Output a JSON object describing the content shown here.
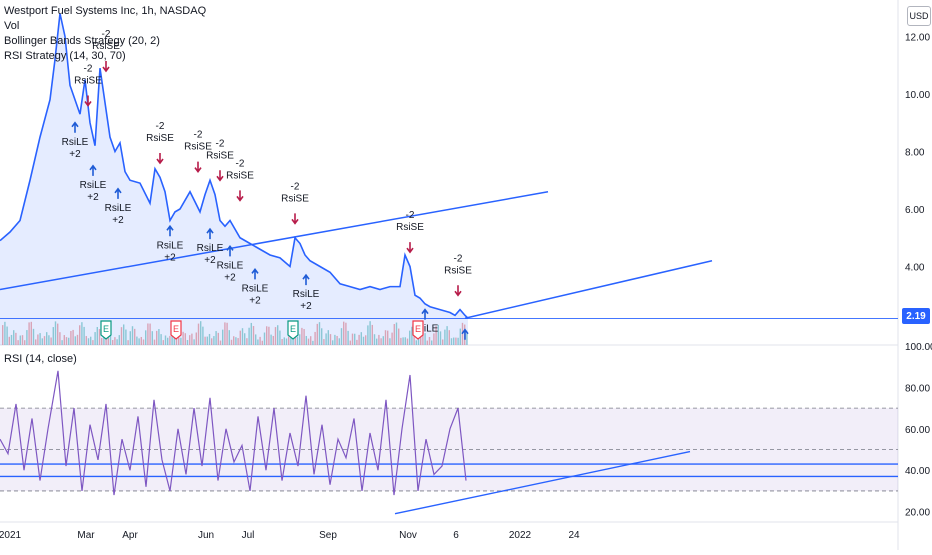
{
  "legend": {
    "symbol": "Westport Fuel Systems Inc, 1h, NASDAQ",
    "vol": "Vol",
    "bb": "Bollinger Bands Strategy (20, 2)",
    "rsi": "RSI Strategy (14, 30, 70)"
  },
  "rsi_legend": "RSI (14, close)",
  "currency": "USD",
  "last_price": "2.19",
  "chart_data": [
    {
      "type": "line",
      "yticks": [
        "12.00",
        "10.00",
        "8.00",
        "6.00",
        "4.00"
      ],
      "ylim": [
        1.2,
        13.2
      ],
      "x_labels": [
        "2021",
        "Mar",
        "Apr",
        "Jun",
        "Jul",
        "Sep",
        "Nov",
        "6",
        "2022",
        "24"
      ],
      "price_x": [
        0,
        10,
        20,
        30,
        40,
        50,
        55,
        60,
        65,
        70,
        80,
        85,
        90,
        95,
        100,
        105,
        110,
        115,
        120,
        125,
        130,
        140,
        150,
        155,
        160,
        165,
        170,
        175,
        180,
        190,
        200,
        205,
        210,
        215,
        220,
        225,
        230,
        240,
        250,
        260,
        270,
        280,
        290,
        295,
        300,
        305,
        310,
        320,
        330,
        340,
        350,
        360,
        370,
        380,
        390,
        400,
        405,
        410,
        415,
        420,
        425,
        430,
        440,
        450,
        455,
        460,
        465,
        468
      ],
      "price_y": [
        4.9,
        5.2,
        5.6,
        7.0,
        8.5,
        9.8,
        11.2,
        12.8,
        12.0,
        10.3,
        9.3,
        10.5,
        9.0,
        8.2,
        10.9,
        9.7,
        8.5,
        8.0,
        8.3,
        7.3,
        7.0,
        6.9,
        6.2,
        7.4,
        7.1,
        6.6,
        5.6,
        5.9,
        6.0,
        6.6,
        5.9,
        6.5,
        7.0,
        6.5,
        5.6,
        5.4,
        5.6,
        5.0,
        4.8,
        4.6,
        4.4,
        4.3,
        4.0,
        5.0,
        4.8,
        4.4,
        4.2,
        4.0,
        3.8,
        3.4,
        3.3,
        3.2,
        3.3,
        3.2,
        3.3,
        3.3,
        4.4,
        4.0,
        3.0,
        2.9,
        2.7,
        2.6,
        2.5,
        2.4,
        2.3,
        2.5,
        2.3,
        2.2
      ],
      "trendlines": [
        {
          "x1": 0,
          "y1": 3.2,
          "x2": 548,
          "y2": 6.6
        },
        {
          "x1": 465,
          "y1": 2.2,
          "x2": 712,
          "y2": 4.2
        }
      ],
      "markers": [
        {
          "type": "short",
          "x": 88,
          "y": 9.6,
          "label": "RsiSE",
          "qty": "-2"
        },
        {
          "type": "short",
          "x": 106,
          "y": 10.8,
          "label": "RsiSE",
          "qty": "-2"
        },
        {
          "type": "short",
          "x": 160,
          "y": 7.6,
          "label": "RsiSE",
          "qty": "-2"
        },
        {
          "type": "short",
          "x": 198,
          "y": 7.3,
          "label": "RsiSE",
          "qty": "-2"
        },
        {
          "type": "short",
          "x": 220,
          "y": 7.0,
          "label": "RsiSE",
          "qty": "-2"
        },
        {
          "type": "short",
          "x": 240,
          "y": 6.3,
          "label": "RsiSE",
          "qty": "-2"
        },
        {
          "type": "short",
          "x": 295,
          "y": 5.5,
          "label": "RsiSE",
          "qty": "-2"
        },
        {
          "type": "short",
          "x": 410,
          "y": 4.5,
          "label": "RsiSE",
          "qty": "-2"
        },
        {
          "type": "short",
          "x": 458,
          "y": 3.0,
          "label": "RsiSE",
          "qty": "-2"
        },
        {
          "type": "long",
          "x": 75,
          "y": 9.0,
          "label": "RsiLE",
          "qty": "+2"
        },
        {
          "type": "long",
          "x": 93,
          "y": 7.5,
          "label": "RsiLE",
          "qty": "+2"
        },
        {
          "type": "long",
          "x": 118,
          "y": 6.7,
          "label": "RsiLE",
          "qty": "+2"
        },
        {
          "type": "long",
          "x": 170,
          "y": 5.4,
          "label": "RsiLE",
          "qty": "+2"
        },
        {
          "type": "long",
          "x": 210,
          "y": 5.3,
          "label": "RsiLE",
          "qty": "+2"
        },
        {
          "type": "long",
          "x": 230,
          "y": 4.7,
          "label": "RsiLE",
          "qty": "+2"
        },
        {
          "type": "long",
          "x": 255,
          "y": 3.9,
          "label": "RsiLE",
          "qty": "+2"
        },
        {
          "type": "long",
          "x": 306,
          "y": 3.7,
          "label": "RsiLE",
          "qty": "+2"
        },
        {
          "type": "long",
          "x": 425,
          "y": 2.5,
          "label": "RsiLE",
          "qty": ""
        },
        {
          "type": "long",
          "x": 465,
          "y": 1.8,
          "label": "",
          "qty": ""
        }
      ],
      "earnings": [
        {
          "x": 106,
          "label": "E",
          "kind": "blue"
        },
        {
          "x": 176,
          "label": "E",
          "kind": "red"
        },
        {
          "x": 293,
          "label": "E",
          "kind": "blue"
        },
        {
          "x": 418,
          "label": "E",
          "kind": "red"
        }
      ]
    },
    {
      "type": "line",
      "title": "RSI (14, close)",
      "yticks": [
        "100.00",
        "80.00",
        "60.00",
        "40.00",
        "20.00"
      ],
      "ylim": [
        15,
        100
      ],
      "bands": [
        70,
        30
      ],
      "midlines": [
        50
      ],
      "horizontal_lines": [
        43,
        37
      ],
      "trendline": {
        "x1": 395,
        "y1": 19,
        "x2": 690,
        "y2": 49
      },
      "rsi_x": [
        0,
        8,
        16,
        24,
        32,
        40,
        48,
        58,
        66,
        74,
        82,
        90,
        98,
        106,
        114,
        122,
        130,
        138,
        146,
        154,
        162,
        170,
        178,
        186,
        194,
        202,
        210,
        218,
        226,
        234,
        242,
        250,
        258,
        266,
        274,
        282,
        290,
        298,
        306,
        314,
        322,
        330,
        338,
        346,
        354,
        362,
        370,
        378,
        386,
        394,
        402,
        410,
        418,
        426,
        434,
        442,
        450,
        458,
        466
      ],
      "rsi_y": [
        55,
        48,
        72,
        40,
        65,
        35,
        60,
        88,
        42,
        70,
        30,
        62,
        45,
        72,
        28,
        55,
        40,
        66,
        32,
        74,
        45,
        30,
        60,
        38,
        70,
        42,
        75,
        35,
        60,
        44,
        52,
        30,
        66,
        40,
        70,
        35,
        58,
        42,
        76,
        38,
        62,
        33,
        55,
        46,
        65,
        30,
        58,
        40,
        74,
        28,
        60,
        86,
        30,
        55,
        38,
        42,
        60,
        70,
        35
      ]
    }
  ]
}
